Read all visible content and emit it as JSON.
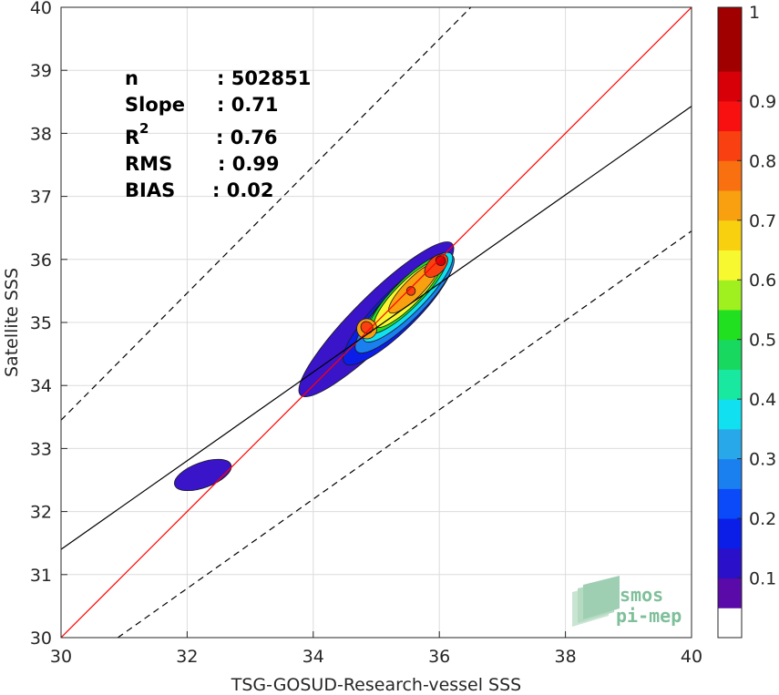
{
  "chart_data": {
    "type": "heatmap",
    "subtype": "density-contour-scatter",
    "xlabel": "TSG-GOSUD-Research-vessel SSS",
    "ylabel": "Satellite SSS",
    "xlim": [
      30,
      40
    ],
    "ylim": [
      30,
      40
    ],
    "xticks": [
      30,
      32,
      34,
      36,
      38,
      40
    ],
    "yticks": [
      30,
      31,
      32,
      33,
      34,
      35,
      36,
      37,
      38,
      39,
      40
    ],
    "grid": true,
    "stats": [
      {
        "label": "n",
        "value": ": 502851"
      },
      {
        "label": "Slope",
        "value": ": 0.71"
      },
      {
        "label": "R",
        "sup": "2",
        "value": ": 0.76"
      },
      {
        "label": "RMS",
        "value": ": 0.99"
      },
      {
        "label": "BIAS",
        "value": ": 0.02"
      }
    ],
    "lines": [
      {
        "name": "identity",
        "color": "#ff0000",
        "style": "solid",
        "points": [
          [
            30,
            30
          ],
          [
            40,
            40
          ]
        ]
      },
      {
        "name": "regression",
        "color": "#000000",
        "style": "solid",
        "points": [
          [
            30,
            31.4
          ],
          [
            40,
            38.43
          ]
        ]
      },
      {
        "name": "upper-bound",
        "color": "#000000",
        "style": "dashed",
        "points": [
          [
            30,
            33.45
          ],
          [
            36.5,
            40
          ]
        ]
      },
      {
        "name": "lower-bound",
        "color": "#000000",
        "style": "dashed",
        "points": [
          [
            30.9,
            30
          ],
          [
            40,
            36.45
          ]
        ]
      }
    ],
    "colorbar": {
      "min": 0.05,
      "max": 1,
      "ticks": [
        0.1,
        0.2,
        0.3,
        0.4,
        0.5,
        0.6,
        0.7,
        0.8,
        0.9,
        1
      ],
      "colors": [
        "#5a0aa8",
        "#2a10c8",
        "#0a1ee8",
        "#0a4af8",
        "#1a80f0",
        "#28a8e8",
        "#10e0f0",
        "#18e8a0",
        "#18d860",
        "#20e020",
        "#a0f020",
        "#f8f830",
        "#f8d010",
        "#f8a010",
        "#f87010",
        "#f84010",
        "#f81010",
        "#d80008",
        "#a00000"
      ]
    },
    "density_levels": [
      {
        "level": 0.05,
        "color": "#3a14c8",
        "center": [
          35.0,
          35.05
        ],
        "sx": 3.4,
        "sy": 0.36,
        "angle": 45
      },
      {
        "level": 0.05,
        "color": "#3a14c8",
        "center": [
          32.25,
          32.58
        ],
        "sx": 0.95,
        "sy": 0.2,
        "angle": 20
      },
      {
        "level": 0.2,
        "color": "#0a1ee8",
        "center": [
          35.35,
          35.2
        ],
        "sx": 2.4,
        "sy": 0.31,
        "angle": 45
      },
      {
        "level": 0.3,
        "color": "#1a80f0",
        "center": [
          35.45,
          35.3
        ],
        "sx": 2.15,
        "sy": 0.28,
        "angle": 45
      },
      {
        "level": 0.4,
        "color": "#10e0f0",
        "center": [
          35.5,
          35.4
        ],
        "sx": 1.95,
        "sy": 0.25,
        "angle": 45
      },
      {
        "level": 0.5,
        "color": "#20e020",
        "center": [
          35.5,
          35.45
        ],
        "sx": 1.7,
        "sy": 0.22,
        "angle": 45
      },
      {
        "level": 0.6,
        "color": "#f8f830",
        "center": [
          35.5,
          35.45
        ],
        "sx": 1.45,
        "sy": 0.19,
        "angle": 45
      },
      {
        "level": 0.7,
        "color": "#f8a010",
        "center": [
          35.6,
          35.55
        ],
        "sx": 1.1,
        "sy": 0.15,
        "angle": 45
      },
      {
        "level": 0.7,
        "color": "#f8a010",
        "center": [
          34.85,
          34.9
        ],
        "sx": 0.32,
        "sy": 0.16,
        "angle": 45
      },
      {
        "level": 0.8,
        "color": "#f84010",
        "center": [
          35.95,
          35.9
        ],
        "sx": 0.45,
        "sy": 0.13,
        "angle": 45
      },
      {
        "level": 0.8,
        "color": "#f84010",
        "center": [
          34.85,
          34.92
        ],
        "sx": 0.18,
        "sy": 0.1,
        "angle": 45
      },
      {
        "level": 0.8,
        "color": "#f84010",
        "center": [
          35.55,
          35.5
        ],
        "sx": 0.14,
        "sy": 0.07,
        "angle": 45
      },
      {
        "level": 0.9,
        "color": "#d80008",
        "center": [
          36.02,
          35.98
        ],
        "sx": 0.15,
        "sy": 0.08,
        "angle": 45
      }
    ],
    "logo": [
      "smos",
      "pi-mep"
    ]
  }
}
